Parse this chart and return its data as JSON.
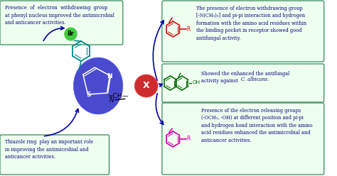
{
  "bg_color": "#ffffff",
  "border_color": "#2e8b57",
  "top_left_text": "Presence  of  electron  withdrawing  group\nat phenyl nucleus improved the antimicrobial\nand anticancer activities.",
  "bottom_left_text": "Thiazole ring  play an important role\nin improving the antimicrobial and\nanticancer activities.",
  "top_right_text": "The presence of electron withdrawing group\n[-N(CH₃)₂] and pi-pi interaction and hydrogen\nformation with the amino acid residues within\nthe binding pocket in receptor showed good\nantifungal activity.",
  "mid_right_text1": "Showed the enhanced the antifungal\nactivity against ",
  "mid_right_text2": "C. albicans.",
  "bot_right_text": "Presence of the electron releasing groups\n(-OCH₃, -OH) at different position and pi-pi\nand hydrogen bond interaction with the amino\nacid residues enhanced the antimicrobial and\nanticancer activities.",
  "thiazole_color": "#4040cc",
  "x_ball_color": "#cc2020",
  "br_ball_color": "#40cc40",
  "benzene_color": "#008888",
  "arrow_color": "#0000aa",
  "text_color": "#000080"
}
